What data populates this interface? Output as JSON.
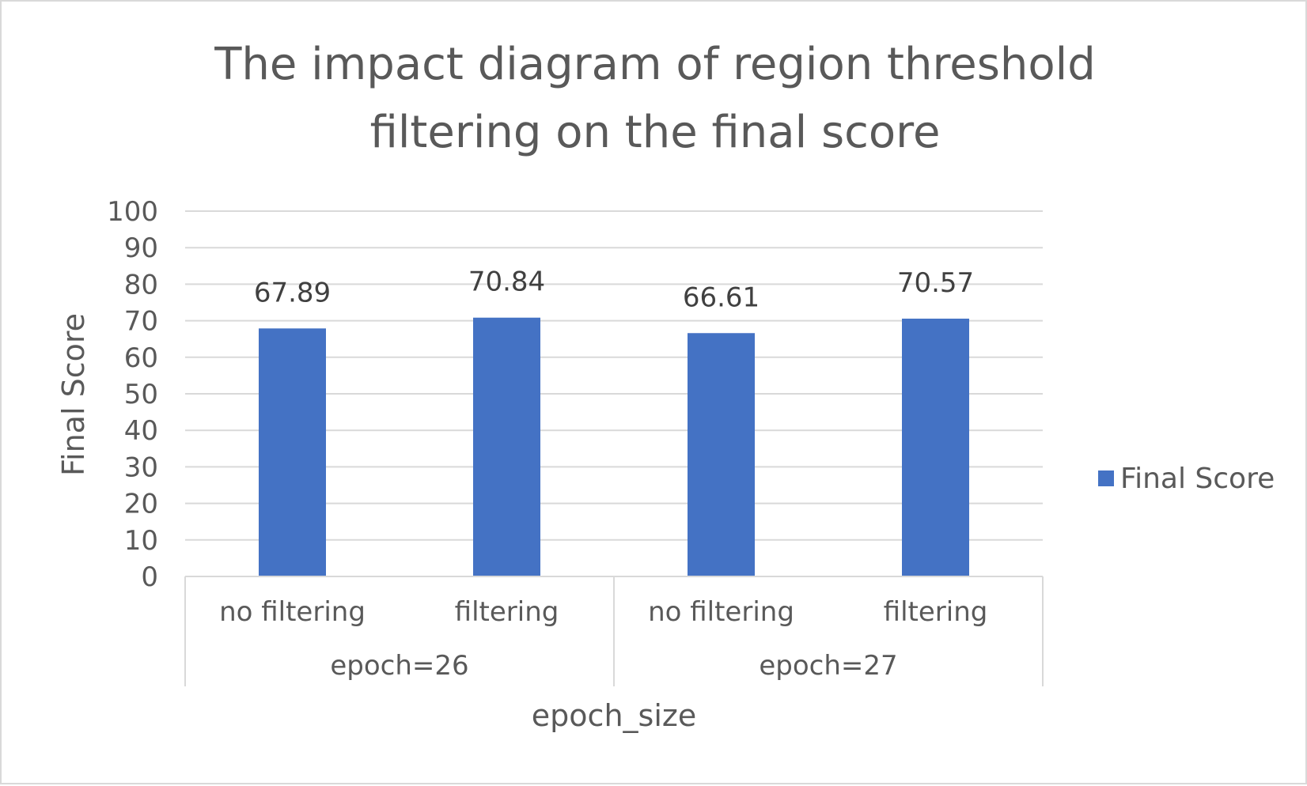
{
  "chart_data": {
    "type": "bar",
    "title": "The impact diagram of  region threshold filtering on the final score",
    "title_lines": [
      "The impact diagram of  region threshold",
      "filtering on the final score"
    ],
    "xlabel": "epoch_size",
    "ylabel": "Final Score",
    "ylim": [
      0,
      100
    ],
    "y_ticks": [
      "0",
      "10",
      "20",
      "30",
      "40",
      "50",
      "60",
      "70",
      "80",
      "90",
      "100"
    ],
    "groups": [
      {
        "label": "epoch=26",
        "categories": [
          "no filtering",
          "filtering"
        ]
      },
      {
        "label": "epoch=27",
        "categories": [
          "no filtering",
          "filtering"
        ]
      }
    ],
    "categories": [
      "no filtering",
      "filtering",
      "no filtering",
      "filtering"
    ],
    "series": [
      {
        "name": "Final Score",
        "values": [
          67.89,
          70.84,
          66.61,
          70.57
        ],
        "value_labels": [
          "67.89",
          "70.84",
          "66.61",
          "70.57"
        ],
        "color": "#4472c4"
      }
    ],
    "grid": true,
    "legend_position": "right",
    "colors": {
      "bar": "#4472c4",
      "grid": "#d9d9d9",
      "text": "#595959"
    }
  }
}
